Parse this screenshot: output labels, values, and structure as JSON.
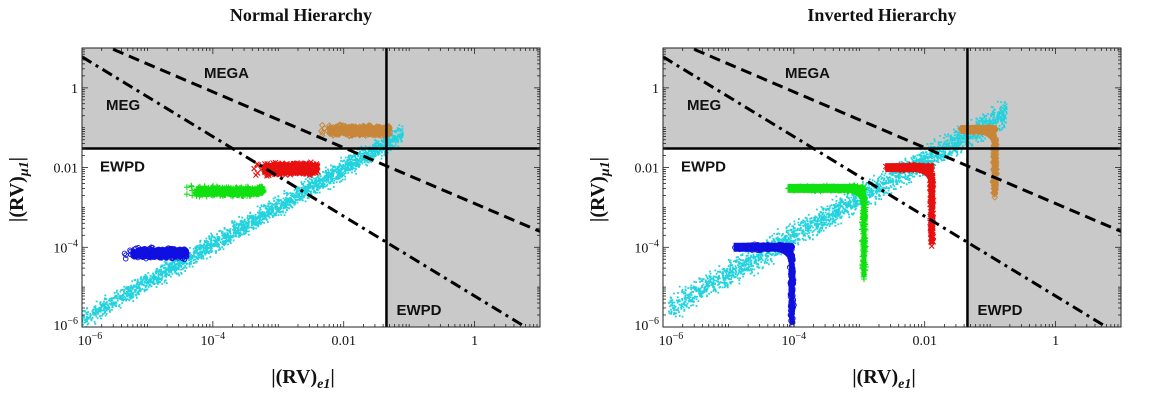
{
  "chart_data": [
    {
      "type": "scatter",
      "title": "Normal Hierarchy",
      "xlabel": "|(RV)e1|",
      "ylabel": "|(RV)μ1|",
      "x_scale": "log",
      "y_scale": "log",
      "xlim": [
        1e-06,
        10
      ],
      "ylim": [
        1e-06,
        10
      ],
      "x_ticks": [
        {
          "v": 1e-06,
          "label": "10^-6"
        },
        {
          "v": 0.0001,
          "label": "10^-4"
        },
        {
          "v": 0.01,
          "label": "0.01"
        },
        {
          "v": 1,
          "label": "1"
        }
      ],
      "y_ticks": [
        {
          "v": 1e-06,
          "label": "10^-6"
        },
        {
          "v": 0.0001,
          "label": "10^-4"
        },
        {
          "v": 0.01,
          "label": "0.01"
        },
        {
          "v": 1,
          "label": "1"
        }
      ],
      "ewpd_x": 0.045,
      "ewpd_y": 0.03,
      "region_labels": {
        "mega": "MEGA",
        "meg": "MEG",
        "ewpd_h": "EWPD",
        "ewpd_v": "EWPD"
      },
      "limit_lines": [
        {
          "name": "MEGA",
          "style": "dashed",
          "from": [
            1e-06,
            20
          ],
          "to": [
            10,
            0.00025
          ]
        },
        {
          "name": "MEG",
          "style": "dashdot",
          "from": [
            1e-06,
            6
          ],
          "to": [
            6,
            1e-06
          ]
        }
      ],
      "band": {
        "color": "#22d3de",
        "x_range": [
          1e-06,
          0.08
        ],
        "slope": 0.95,
        "y_at_x_min": 1.2e-06,
        "width_dec": 0.35
      },
      "clusters": [
        {
          "color": "#1010e0",
          "marker": "circle",
          "x_range": [
            6e-06,
            4e-05
          ],
          "y_range": [
            5e-05,
            0.0001
          ]
        },
        {
          "color": "#10e010",
          "marker": "plus",
          "x_range": [
            5.5e-05,
            0.0006
          ],
          "y_range": [
            0.0018,
            0.0035
          ]
        },
        {
          "color": "#e81010",
          "marker": "x",
          "x_range": [
            0.0006,
            0.004
          ],
          "y_range": [
            0.006,
            0.014
          ]
        },
        {
          "color": "#c8863a",
          "marker": "diamond",
          "x_range": [
            0.006,
            0.05
          ],
          "y_range": [
            0.06,
            0.12
          ]
        }
      ]
    },
    {
      "type": "scatter",
      "title": "Inverted Hierarchy",
      "xlabel": "|(RV)e1|",
      "ylabel": "|(RV)μ1|",
      "x_scale": "log",
      "y_scale": "log",
      "xlim": [
        1e-06,
        10
      ],
      "ylim": [
        1e-06,
        10
      ],
      "x_ticks": [
        {
          "v": 1e-06,
          "label": "10^-6"
        },
        {
          "v": 0.0001,
          "label": "10^-4"
        },
        {
          "v": 0.01,
          "label": "0.01"
        },
        {
          "v": 1,
          "label": "1"
        }
      ],
      "y_ticks": [
        {
          "v": 1e-06,
          "label": "10^-6"
        },
        {
          "v": 0.0001,
          "label": "10^-4"
        },
        {
          "v": 0.01,
          "label": "0.01"
        },
        {
          "v": 1,
          "label": "1"
        }
      ],
      "ewpd_x": 0.045,
      "ewpd_y": 0.03,
      "region_labels": {
        "mega": "MEGA",
        "meg": "MEG",
        "ewpd_h": "EWPD",
        "ewpd_v": "EWPD"
      },
      "limit_lines": [
        {
          "name": "MEGA",
          "style": "dashed",
          "from": [
            1e-06,
            20
          ],
          "to": [
            10,
            0.00025
          ]
        },
        {
          "name": "MEG",
          "style": "dashdot",
          "from": [
            1e-06,
            6
          ],
          "to": [
            6,
            1e-06
          ]
        }
      ],
      "band": {
        "color": "#22d3de",
        "x_range": [
          1.2e-06,
          0.18
        ],
        "slope": 0.95,
        "y_at_x_min": 1.6e-06,
        "width_dec": 0.45
      },
      "clusters": [
        {
          "color": "#1010e0",
          "marker": "circle",
          "y_level": 0.0001,
          "x_start": 1.2e-05,
          "x_end": 9.5e-05,
          "y_bottom": 1.2e-06
        },
        {
          "color": "#10e010",
          "marker": "plus",
          "y_level": 0.003,
          "x_start": 8e-05,
          "x_end": 0.0012,
          "y_bottom": 1.8e-05
        },
        {
          "color": "#e81010",
          "marker": "x",
          "y_level": 0.01,
          "x_start": 0.0025,
          "x_end": 0.013,
          "y_bottom": 0.00012
        },
        {
          "color": "#c8863a",
          "marker": "diamond",
          "y_level": 0.09,
          "x_start": 0.035,
          "x_end": 0.12,
          "y_bottom": 0.002
        }
      ]
    }
  ]
}
